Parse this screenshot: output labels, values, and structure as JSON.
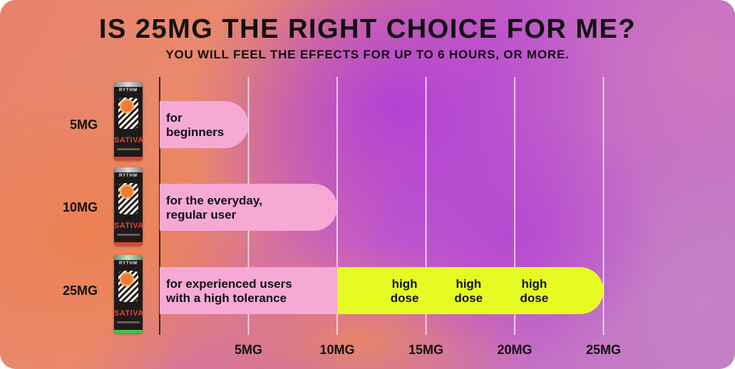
{
  "header": {
    "title": "IS 25MG THE RIGHT CHOICE FOR ME?",
    "subtitle": "YOU WILL FEEL THE EFFECTS FOR UP TO 6 HOURS, OR MORE."
  },
  "products": [
    {
      "brand": "RYTHM",
      "strain": "SATIVA",
      "band_color": "#d9442e"
    },
    {
      "brand": "RYTHM",
      "strain": "SATIVA",
      "band_color": "#d9442e"
    },
    {
      "brand": "RYTHM",
      "strain": "SATIVA",
      "band_color": "#3cc44a"
    }
  ],
  "chart_data": {
    "type": "bar",
    "orientation": "horizontal",
    "xlim": [
      0,
      25
    ],
    "x_ticks": [
      5,
      10,
      15,
      20,
      25
    ],
    "x_tick_labels": [
      "5MG",
      "10MG",
      "15MG",
      "20MG",
      "25MG"
    ],
    "grid": true,
    "categories": [
      "5MG",
      "10MG",
      "25MG"
    ],
    "rows": [
      {
        "label": "5MG",
        "segments": [
          {
            "start": 0,
            "end": 5,
            "color": "#f7a9d6",
            "text": [
              "for",
              "beginners"
            ],
            "text_pos": [
              0
            ]
          }
        ]
      },
      {
        "label": "10MG",
        "segments": [
          {
            "start": 0,
            "end": 10,
            "color": "#f7a9d6",
            "text": [
              "for the everyday,",
              "regular user"
            ],
            "text_pos": [
              0
            ]
          }
        ]
      },
      {
        "label": "25MG",
        "segments": [
          {
            "start": 0,
            "end": 10,
            "color": "#f7a9d6",
            "text": [
              "for experienced users",
              "with a high tolerance"
            ],
            "text_pos": [
              0
            ]
          },
          {
            "start": 10,
            "end": 25,
            "color": "#e6fb23",
            "labels": [
              {
                "center": 13.8,
                "text": [
                  "high",
                  "dose"
                ]
              },
              {
                "center": 17.4,
                "text": [
                  "high",
                  "dose"
                ]
              },
              {
                "center": 21.1,
                "text": [
                  "high",
                  "dose"
                ]
              }
            ]
          }
        ]
      }
    ]
  }
}
